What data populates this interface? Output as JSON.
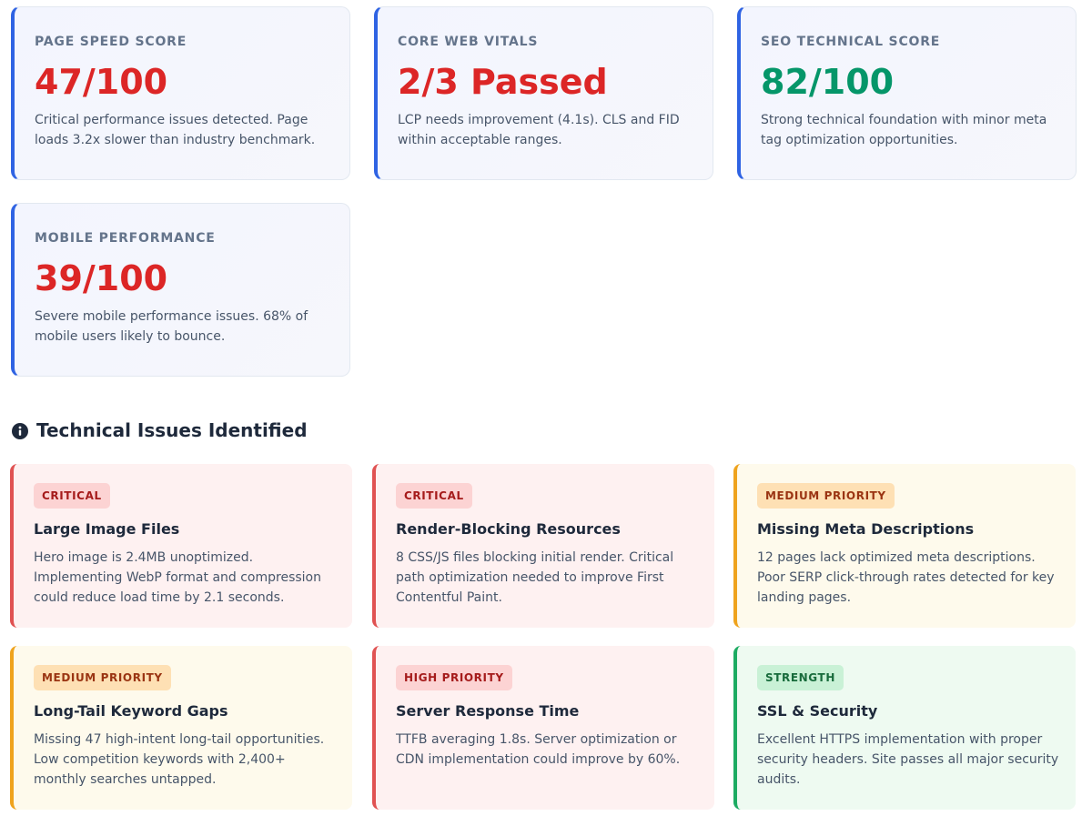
{
  "metrics": [
    {
      "label": "PAGE SPEED SCORE",
      "value": "47/100",
      "value_color": "#dc2626",
      "description": "Critical performance issues detected. Page loads 3.2x slower than industry benchmark."
    },
    {
      "label": "CORE WEB VITALS",
      "value": "2/3 Passed",
      "value_color": "#dc2626",
      "description": "LCP needs improvement (4.1s). CLS and FID within acceptable ranges."
    },
    {
      "label": "SEO TECHNICAL SCORE",
      "value": "82/100",
      "value_color": "#059669",
      "description": "Strong technical foundation with minor meta tag optimization opportunities."
    },
    {
      "label": "MOBILE PERFORMANCE",
      "value": "39/100",
      "value_color": "#dc2626",
      "description": "Severe mobile performance issues. 68% of mobile users likely to bounce."
    }
  ],
  "section": {
    "icon": "info-circle-icon",
    "title": "Technical Issues Identified"
  },
  "issues": [
    {
      "badge": "CRITICAL",
      "title": "Large Image Files",
      "description": "Hero image is 2.4MB unoptimized. Implementing WebP format and compression could reduce load time by 2.1 seconds."
    },
    {
      "badge": "CRITICAL",
      "title": "Render-Blocking Resources",
      "description": "8 CSS/JS files blocking initial render. Critical path optimization needed to improve First Contentful Paint."
    },
    {
      "badge": "MEDIUM PRIORITY",
      "title": "Missing Meta Descriptions",
      "description": "12 pages lack optimized meta descriptions. Poor SERP click-through rates detected for key landing pages."
    },
    {
      "badge": "MEDIUM PRIORITY",
      "title": "Long-Tail Keyword Gaps",
      "description": "Missing 47 high-intent long-tail opportunities. Low competition keywords with 2,400+ monthly searches untapped."
    },
    {
      "badge": "HIGH PRIORITY",
      "title": "Server Response Time",
      "description": "TTFB averaging 1.8s. Server optimization or CDN implementation could improve by 60%."
    },
    {
      "badge": "STRENGTH",
      "title": "SSL & Security",
      "description": "Excellent HTTPS implementation with proper security headers. Site passes all major security audits."
    }
  ],
  "colors": {
    "accent_blue": "#2f63e3",
    "critical_red": "#e05252",
    "medium_orange": "#efa31d",
    "strength_green": "#1cab62"
  }
}
